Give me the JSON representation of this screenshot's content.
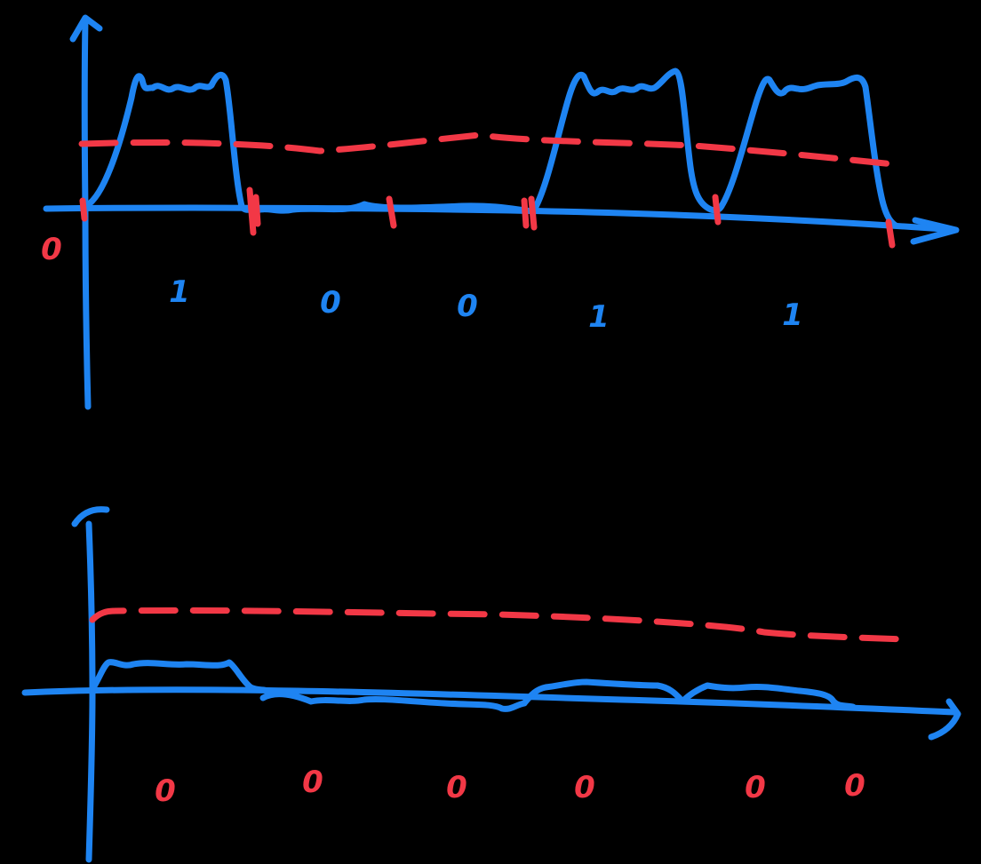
{
  "colors": {
    "background": "#000000",
    "signal": "#1E84F2",
    "threshold": "#F23846"
  },
  "top_panel": {
    "origin_label": "0",
    "bit_labels": [
      "1",
      "0",
      "0",
      "1",
      "1"
    ]
  },
  "bottom_panel": {
    "bit_labels": [
      "0",
      "0",
      "0",
      "0",
      "0",
      "0"
    ]
  }
}
